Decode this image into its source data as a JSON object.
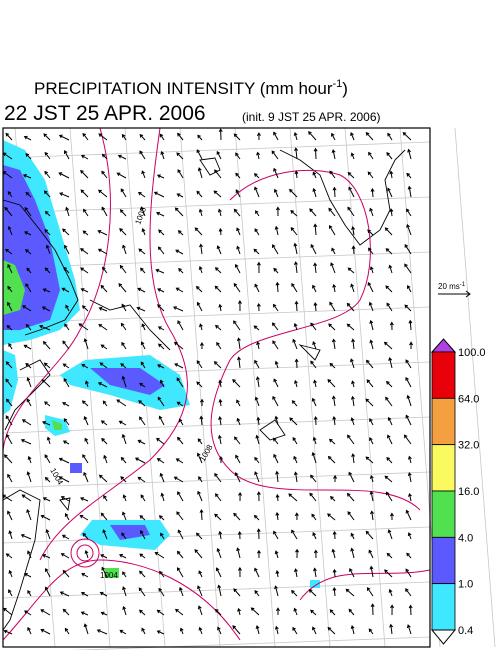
{
  "header": {
    "title": "PRECIPITATION INTENSITY (mm hour",
    "title_exponent": "-1",
    "title_close": ")",
    "valid_time": "22 JST 25 APR. 2006",
    "init_time": "(init. 9 JST 25 APR. 2006)"
  },
  "wind_scale": {
    "label": "20 ms",
    "exponent": "-1"
  },
  "colorbar": {
    "labels": [
      "100.0",
      "64.0",
      "32.0",
      "16.0",
      "4.0",
      "1.0",
      "0.4"
    ],
    "colors": [
      "#e8000b",
      "#f5a040",
      "#fafa60",
      "#50e050",
      "#5a5aff",
      "#40e8ff"
    ],
    "over_color": "#b040e0",
    "under_color": "#ffffff"
  },
  "contour_labels": [
    "1008",
    "1008",
    "1004",
    "1004"
  ]
}
